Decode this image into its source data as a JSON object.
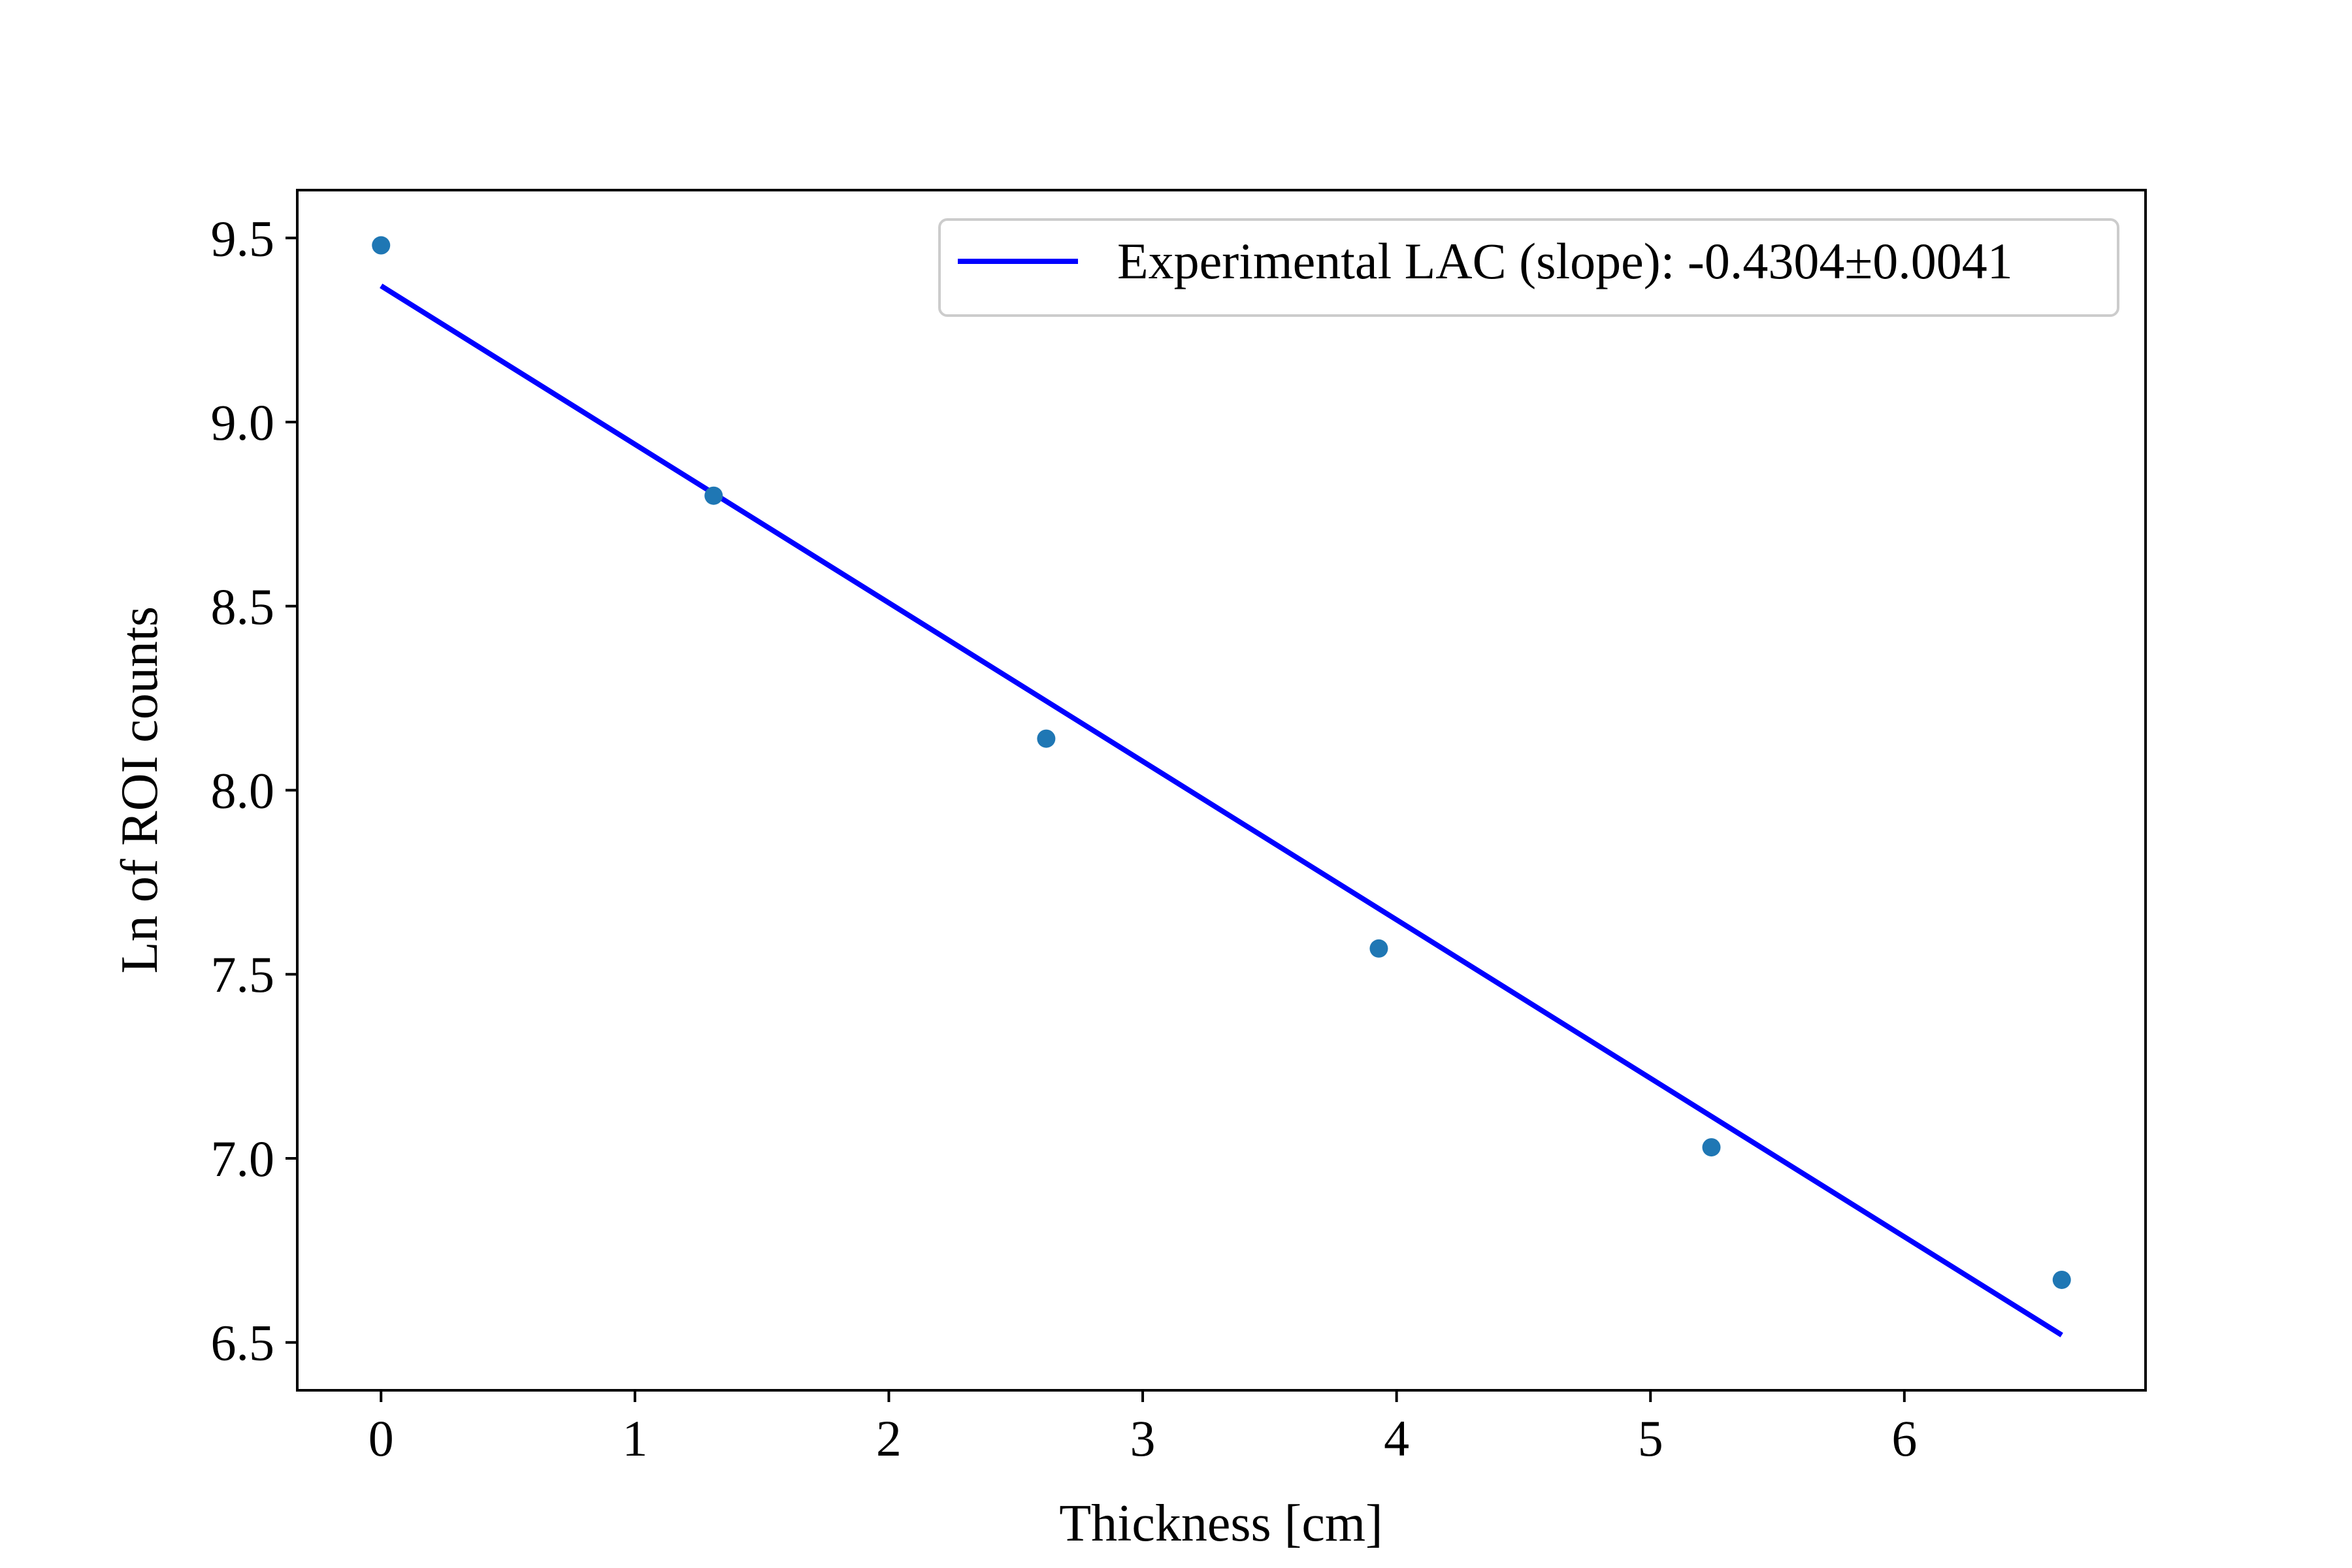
{
  "chart_data": {
    "type": "scatter",
    "title": "",
    "xlabel": "Thickness [cm]",
    "ylabel": "Ln of ROI counts",
    "xlim": [
      -0.33,
      6.95
    ],
    "ylim": [
      6.37,
      9.63
    ],
    "xticks": [
      0,
      1,
      2,
      3,
      4,
      5,
      6
    ],
    "xtick_labels": [
      "0",
      "1",
      "2",
      "3",
      "4",
      "5",
      "6"
    ],
    "yticks": [
      6.5,
      7.0,
      7.5,
      8.0,
      8.5,
      9.0,
      9.5
    ],
    "ytick_labels": [
      "6.5",
      "7.0",
      "7.5",
      "8.0",
      "8.5",
      "9.0",
      "9.5"
    ],
    "grid": false,
    "legend_position": "top-right",
    "series": [
      {
        "kind": "scatter",
        "color": "#1f77b4",
        "x": [
          0.0,
          1.31,
          2.62,
          3.93,
          5.24,
          6.62
        ],
        "y": [
          9.48,
          8.8,
          8.14,
          7.57,
          7.03,
          6.67
        ]
      },
      {
        "kind": "line",
        "name": "Experimental LAC (slope): -0.4304±0.0041",
        "color": "#0000ff",
        "x": [
          0.0,
          6.62
        ],
        "y": [
          9.37,
          6.52
        ]
      }
    ]
  }
}
